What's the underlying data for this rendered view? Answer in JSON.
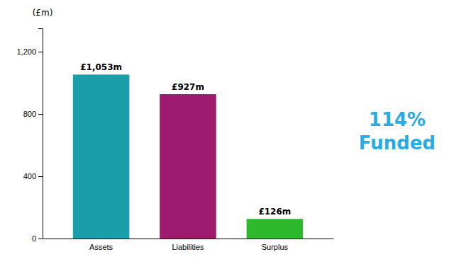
{
  "chart_data": {
    "type": "bar",
    "categories": [
      "Assets",
      "Liabilities",
      "Surplus"
    ],
    "values": [
      1053,
      927,
      126
    ],
    "value_labels": [
      "£1,053m",
      "£927m",
      "£126m"
    ],
    "data_labels": true,
    "colors": [
      "#1a9faa",
      "#9e1a6e",
      "#2db82d"
    ],
    "y_label": "(£m)",
    "ylim": [
      0,
      1350
    ],
    "yticks": [
      0,
      {
        "value": 400,
        "label": "400"
      },
      {
        "value": 800,
        "label": "800"
      },
      {
        "value": 1200,
        "label": "1,200"
      }
    ],
    "grid": false,
    "annotations": [
      {
        "text": "114%\nFunded",
        "color": "#29abe2"
      }
    ]
  }
}
